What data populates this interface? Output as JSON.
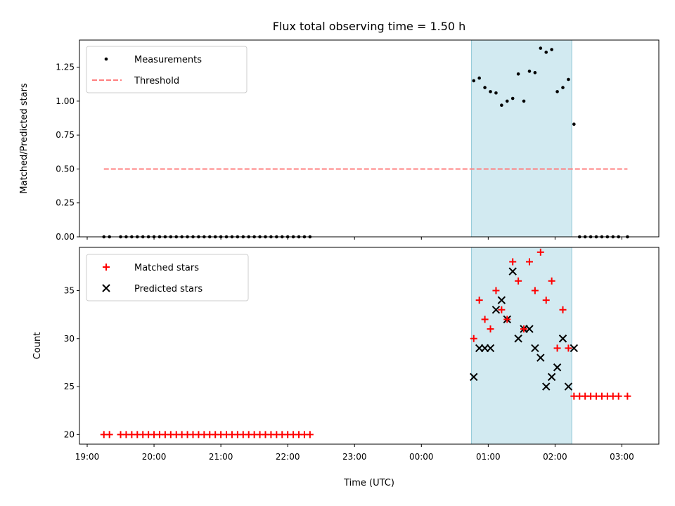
{
  "chart_data": [
    {
      "type": "scatter",
      "title": "Flux total observing time = 1.50 h",
      "xlabel": "",
      "ylabel": "Matched/Predicted stars",
      "ylim": [
        0,
        1.45
      ],
      "yticks": [
        "0.00",
        "0.25",
        "0.50",
        "0.75",
        "1.00",
        "1.25"
      ],
      "legend": {
        "position": "top-left",
        "entries": [
          "Measurements",
          "Threshold"
        ]
      },
      "shaded_region": {
        "x_start": "00:45",
        "x_end": "02:15",
        "color": "#add8e6"
      },
      "threshold": {
        "name": "Threshold",
        "value": 0.5,
        "x_start": "19:15",
        "x_end": "03:05",
        "color": "#ff7f7f"
      },
      "series": [
        {
          "name": "Measurements",
          "color": "#000000",
          "points": [
            [
              "19:15",
              0
            ],
            [
              "19:20",
              0
            ],
            [
              "19:30",
              0
            ],
            [
              "19:35",
              0
            ],
            [
              "19:40",
              0
            ],
            [
              "19:45",
              0
            ],
            [
              "19:50",
              0
            ],
            [
              "19:55",
              0
            ],
            [
              "20:00",
              0
            ],
            [
              "20:05",
              0
            ],
            [
              "20:10",
              0
            ],
            [
              "20:15",
              0
            ],
            [
              "20:20",
              0
            ],
            [
              "20:25",
              0
            ],
            [
              "20:30",
              0
            ],
            [
              "20:35",
              0
            ],
            [
              "20:40",
              0
            ],
            [
              "20:45",
              0
            ],
            [
              "20:50",
              0
            ],
            [
              "20:55",
              0
            ],
            [
              "21:00",
              0
            ],
            [
              "21:05",
              0
            ],
            [
              "21:10",
              0
            ],
            [
              "21:15",
              0
            ],
            [
              "21:20",
              0
            ],
            [
              "21:25",
              0
            ],
            [
              "21:30",
              0
            ],
            [
              "21:35",
              0
            ],
            [
              "21:40",
              0
            ],
            [
              "21:45",
              0
            ],
            [
              "21:50",
              0
            ],
            [
              "21:55",
              0
            ],
            [
              "22:00",
              0
            ],
            [
              "22:05",
              0
            ],
            [
              "22:10",
              0
            ],
            [
              "22:15",
              0
            ],
            [
              "22:20",
              0
            ],
            [
              "00:47",
              1.15
            ],
            [
              "00:52",
              1.17
            ],
            [
              "00:57",
              1.1
            ],
            [
              "01:02",
              1.07
            ],
            [
              "01:07",
              1.06
            ],
            [
              "01:12",
              0.97
            ],
            [
              "01:17",
              1.0
            ],
            [
              "01:22",
              1.02
            ],
            [
              "01:27",
              1.2
            ],
            [
              "01:32",
              1.0
            ],
            [
              "01:37",
              1.22
            ],
            [
              "01:42",
              1.21
            ],
            [
              "01:47",
              1.39
            ],
            [
              "01:52",
              1.36
            ],
            [
              "01:57",
              1.38
            ],
            [
              "02:02",
              1.07
            ],
            [
              "02:07",
              1.1
            ],
            [
              "02:12",
              1.16
            ],
            [
              "02:17",
              0.83
            ],
            [
              "02:22",
              0
            ],
            [
              "02:27",
              0
            ],
            [
              "02:32",
              0
            ],
            [
              "02:37",
              0
            ],
            [
              "02:42",
              0
            ],
            [
              "02:47",
              0
            ],
            [
              "02:52",
              0
            ],
            [
              "02:57",
              0
            ],
            [
              "03:05",
              0
            ]
          ]
        }
      ]
    },
    {
      "type": "scatter",
      "title": "",
      "xlabel": "Time (UTC)",
      "ylabel": "Count",
      "ylim": [
        19,
        39.5
      ],
      "yticks": [
        "20",
        "25",
        "30",
        "35"
      ],
      "x_range": [
        "19:00",
        "03:30"
      ],
      "x_ticks": [
        "19:00",
        "20:00",
        "21:00",
        "22:00",
        "23:00",
        "00:00",
        "01:00",
        "02:00",
        "03:00"
      ],
      "legend": {
        "position": "top-left",
        "entries": [
          "Matched stars",
          "Predicted stars"
        ]
      },
      "shaded_region": {
        "x_start": "00:45",
        "x_end": "02:15",
        "color": "#add8e6"
      },
      "series": [
        {
          "name": "Matched stars",
          "marker": "plus",
          "color": "#ff0000",
          "points": [
            [
              "19:15",
              20
            ],
            [
              "19:20",
              20
            ],
            [
              "19:30",
              20
            ],
            [
              "19:35",
              20
            ],
            [
              "19:40",
              20
            ],
            [
              "19:45",
              20
            ],
            [
              "19:50",
              20
            ],
            [
              "19:55",
              20
            ],
            [
              "20:00",
              20
            ],
            [
              "20:05",
              20
            ],
            [
              "20:10",
              20
            ],
            [
              "20:15",
              20
            ],
            [
              "20:20",
              20
            ],
            [
              "20:25",
              20
            ],
            [
              "20:30",
              20
            ],
            [
              "20:35",
              20
            ],
            [
              "20:40",
              20
            ],
            [
              "20:45",
              20
            ],
            [
              "20:50",
              20
            ],
            [
              "20:55",
              20
            ],
            [
              "21:00",
              20
            ],
            [
              "21:05",
              20
            ],
            [
              "21:10",
              20
            ],
            [
              "21:15",
              20
            ],
            [
              "21:20",
              20
            ],
            [
              "21:25",
              20
            ],
            [
              "21:30",
              20
            ],
            [
              "21:35",
              20
            ],
            [
              "21:40",
              20
            ],
            [
              "21:45",
              20
            ],
            [
              "21:50",
              20
            ],
            [
              "21:55",
              20
            ],
            [
              "22:00",
              20
            ],
            [
              "22:05",
              20
            ],
            [
              "22:10",
              20
            ],
            [
              "22:15",
              20
            ],
            [
              "22:20",
              20
            ],
            [
              "00:47",
              30
            ],
            [
              "00:52",
              34
            ],
            [
              "00:57",
              32
            ],
            [
              "01:02",
              31
            ],
            [
              "01:07",
              35
            ],
            [
              "01:12",
              33
            ],
            [
              "01:17",
              32
            ],
            [
              "01:22",
              38
            ],
            [
              "01:27",
              36
            ],
            [
              "01:32",
              31
            ],
            [
              "01:37",
              38
            ],
            [
              "01:42",
              35
            ],
            [
              "01:47",
              39
            ],
            [
              "01:52",
              34
            ],
            [
              "01:57",
              36
            ],
            [
              "02:02",
              29
            ],
            [
              "02:07",
              33
            ],
            [
              "02:12",
              29
            ],
            [
              "02:17",
              24
            ],
            [
              "02:22",
              24
            ],
            [
              "02:27",
              24
            ],
            [
              "02:32",
              24
            ],
            [
              "02:37",
              24
            ],
            [
              "02:42",
              24
            ],
            [
              "02:47",
              24
            ],
            [
              "02:52",
              24
            ],
            [
              "02:57",
              24
            ],
            [
              "03:05",
              24
            ]
          ]
        },
        {
          "name": "Predicted stars",
          "marker": "x",
          "color": "#000000",
          "points": [
            [
              "00:47",
              26
            ],
            [
              "00:52",
              29
            ],
            [
              "00:57",
              29
            ],
            [
              "01:02",
              29
            ],
            [
              "01:07",
              33
            ],
            [
              "01:12",
              34
            ],
            [
              "01:17",
              32
            ],
            [
              "01:22",
              37
            ],
            [
              "01:27",
              30
            ],
            [
              "01:32",
              31
            ],
            [
              "01:37",
              31
            ],
            [
              "01:42",
              29
            ],
            [
              "01:47",
              28
            ],
            [
              "01:52",
              25
            ],
            [
              "01:57",
              26
            ],
            [
              "02:02",
              27
            ],
            [
              "02:07",
              30
            ],
            [
              "02:12",
              25
            ],
            [
              "02:17",
              29
            ]
          ]
        }
      ]
    }
  ]
}
